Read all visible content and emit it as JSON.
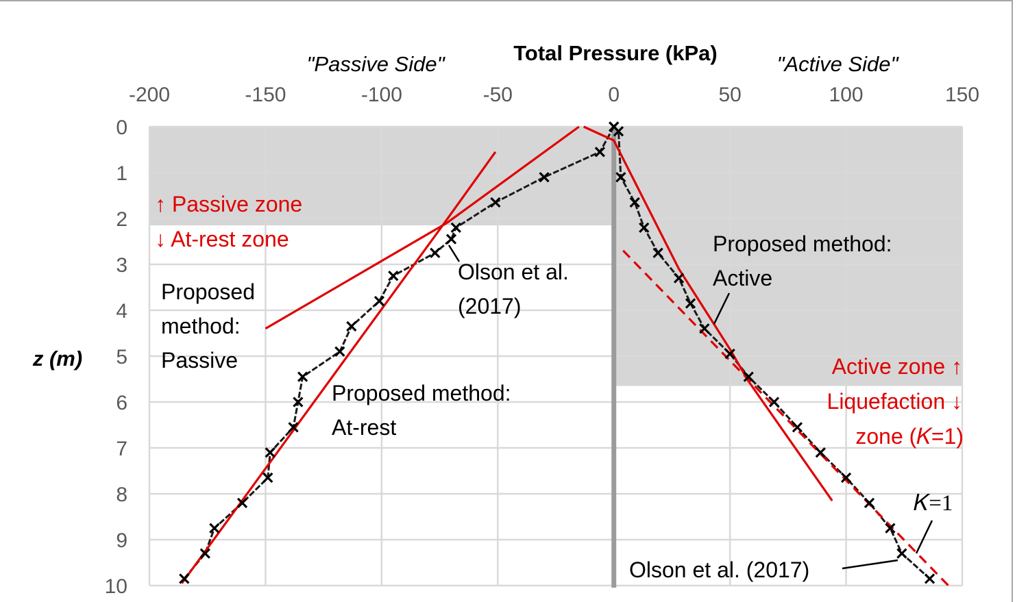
{
  "chart_data": {
    "type": "line",
    "title": "Total Pressure (kPa)",
    "ylabel": "z (m)",
    "xlim": [
      -200,
      150
    ],
    "ylim": [
      0,
      10
    ],
    "y_inverted": true,
    "x_axis_position": "top",
    "xticks": [
      "-200",
      "-150",
      "-100",
      "-50",
      "0",
      "50",
      "100",
      "150"
    ],
    "yticks": [
      "0",
      "1",
      "2",
      "3",
      "4",
      "5",
      "6",
      "7",
      "8",
      "9",
      "10"
    ],
    "grid": true,
    "side_labels": {
      "passive": "\"Passive Side\"",
      "active": "\"Active Side\""
    },
    "zones": {
      "passive_shaded": {
        "x": [
          -200,
          0
        ],
        "z": [
          0,
          2.15
        ]
      },
      "active_shaded": {
        "x": [
          0,
          150
        ],
        "z": [
          0,
          5.65
        ]
      }
    },
    "series": [
      {
        "name": "Olson et al. (2017)",
        "side": "passive",
        "color": "#000000",
        "marker": "x",
        "x": [
          0,
          -6,
          -30,
          -51,
          -68,
          -70,
          -77,
          -95,
          -101,
          -113,
          -118,
          -134,
          -136,
          -138,
          -148,
          -149,
          -160,
          -172,
          -176,
          -185
        ],
        "z": [
          0,
          0.55,
          1.1,
          1.65,
          2.2,
          2.45,
          2.75,
          3.25,
          3.8,
          4.35,
          4.9,
          5.45,
          6.0,
          6.55,
          7.1,
          7.65,
          8.2,
          8.75,
          9.3,
          9.85
        ]
      },
      {
        "name": "Olson et al. (2017)",
        "side": "active",
        "color": "#000000",
        "marker": "x",
        "x": [
          0,
          2,
          3,
          9,
          13,
          19,
          28,
          33,
          39,
          50,
          58,
          69,
          79,
          89,
          100,
          110,
          119,
          124,
          136
        ],
        "z": [
          0,
          0.1,
          1.1,
          1.65,
          2.2,
          2.75,
          3.3,
          3.85,
          4.4,
          4.95,
          5.45,
          6.0,
          6.55,
          7.1,
          7.65,
          8.2,
          8.75,
          9.3,
          9.85
        ]
      },
      {
        "name": "Proposed method: Passive",
        "color": "#e00000",
        "x": [
          -15,
          -72
        ],
        "z": [
          0,
          2.1
        ]
      },
      {
        "name": "Proposed method: Passive",
        "color": "#e00000",
        "x": [
          -72,
          -150
        ],
        "z": [
          2.1,
          4.4
        ]
      },
      {
        "name": "Proposed method: At-rest",
        "color": "#e00000",
        "x": [
          -51,
          -73,
          -186
        ],
        "z": [
          0.55,
          2.1,
          9.95
        ]
      },
      {
        "name": "Proposed method: Active",
        "color": "#e00000",
        "x": [
          -13,
          0,
          28,
          50,
          58,
          94
        ],
        "z": [
          0,
          0.3,
          3.1,
          4.85,
          5.55,
          8.15
        ]
      },
      {
        "name": "K=1",
        "color": "#e00000",
        "dashed": true,
        "x": [
          4,
          145
        ],
        "z": [
          2.7,
          10.05
        ]
      }
    ],
    "annotations": {
      "olson_passive": [
        "Olson et al.",
        "(2017)"
      ],
      "olson_active": "Olson et al. (2017)",
      "prop_passive": [
        "Proposed",
        "method:",
        "Passive"
      ],
      "prop_atrest": [
        "Proposed method:",
        "At-rest"
      ],
      "prop_active": [
        "Proposed method:",
        "Active"
      ],
      "k1_label": "𝐾=1",
      "passive_zone": "↑ Passive zone",
      "atrest_zone": "↓ At-rest zone",
      "active_zone": "Active zone ↑",
      "liquefaction_1": "Liquefaction ↓",
      "liquefaction_2": "zone (𝐾=1)"
    }
  }
}
